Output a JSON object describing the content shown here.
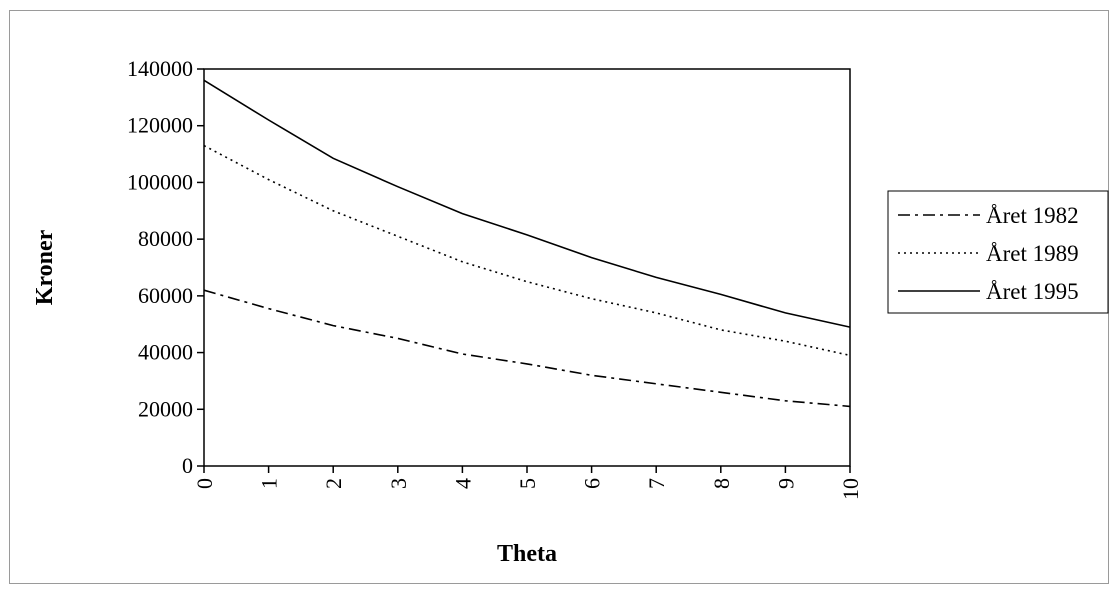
{
  "chart_data": {
    "type": "line",
    "title": "",
    "xlabel": "Theta",
    "ylabel": "Kroner",
    "x": [
      0,
      1,
      2,
      3,
      4,
      5,
      6,
      7,
      8,
      9,
      10
    ],
    "xlim": [
      0,
      10
    ],
    "ylim": [
      0,
      140000
    ],
    "x_ticks": [
      "0",
      "1",
      "2",
      "3",
      "4",
      "5",
      "6",
      "7",
      "8",
      "9",
      "10"
    ],
    "y_ticks": [
      "0",
      "20000",
      "40000",
      "60000",
      "80000",
      "100000",
      "120000",
      "140000"
    ],
    "grid": false,
    "legend_position": "right",
    "series": [
      {
        "name": "Året 1982",
        "style": "dash-dot",
        "color": "#000000",
        "values": [
          62000,
          55500,
          49500,
          45000,
          39500,
          36000,
          32000,
          29000,
          26000,
          23000,
          21000
        ]
      },
      {
        "name": "Året 1989",
        "style": "dotted",
        "color": "#000000",
        "values": [
          113000,
          101000,
          90000,
          81000,
          72000,
          65000,
          59000,
          54000,
          48000,
          44000,
          39000
        ]
      },
      {
        "name": "Året 1995",
        "style": "solid",
        "color": "#000000",
        "values": [
          136000,
          122000,
          108500,
          98500,
          89000,
          81500,
          73500,
          66500,
          60500,
          54000,
          49000
        ]
      }
    ]
  }
}
